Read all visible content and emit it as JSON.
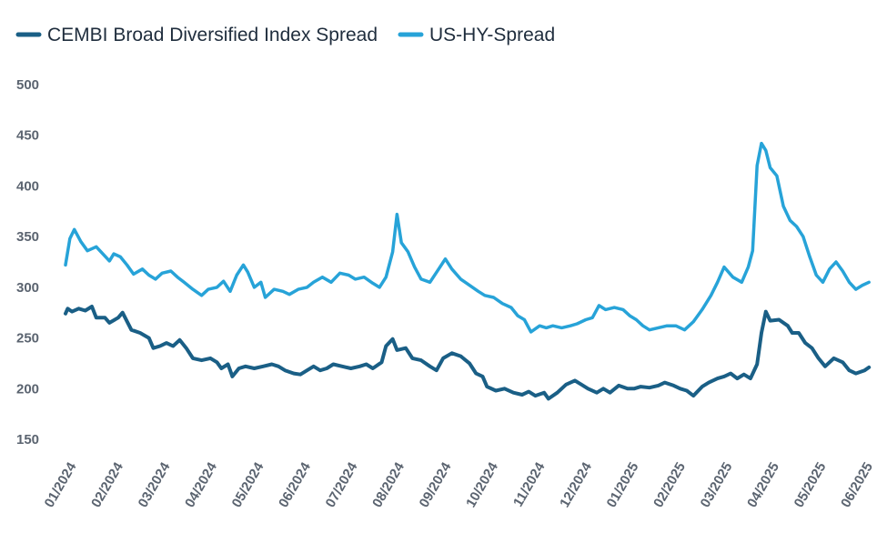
{
  "chart_data": {
    "type": "line",
    "title": "",
    "xlabel": "",
    "ylabel": "",
    "ylim": [
      150,
      500
    ],
    "yticks": [
      500,
      450,
      400,
      350,
      300,
      250,
      200,
      150
    ],
    "x_tick_labels": [
      "01/2024",
      "02/2024",
      "03/2024",
      "04/2024",
      "05/2024",
      "06/2024",
      "07/2024",
      "08/2024",
      "09/2024",
      "10/2024",
      "11/2024",
      "12/2024",
      "01/2025",
      "02/2025",
      "03/2025",
      "04/2025",
      "05/2025",
      "06/2025"
    ],
    "x_range_months": [
      0,
      17.6
    ],
    "grid": false,
    "legend_position": "top-left",
    "series": [
      {
        "name": "CEMBI Broad Diversified Index Spread",
        "color": "#1a5f86",
        "points": [
          [
            0,
            274
          ],
          [
            0.05,
            279
          ],
          [
            0.15,
            276
          ],
          [
            0.3,
            279
          ],
          [
            0.45,
            277
          ],
          [
            0.6,
            281
          ],
          [
            0.7,
            270
          ],
          [
            0.9,
            270
          ],
          [
            1.0,
            265
          ],
          [
            1.2,
            270
          ],
          [
            1.3,
            275
          ],
          [
            1.5,
            258
          ],
          [
            1.7,
            255
          ],
          [
            1.9,
            250
          ],
          [
            2.0,
            240
          ],
          [
            2.15,
            242
          ],
          [
            2.3,
            245
          ],
          [
            2.45,
            242
          ],
          [
            2.6,
            248
          ],
          [
            2.75,
            240
          ],
          [
            2.9,
            230
          ],
          [
            3.1,
            228
          ],
          [
            3.3,
            230
          ],
          [
            3.45,
            226
          ],
          [
            3.55,
            220
          ],
          [
            3.7,
            224
          ],
          [
            3.8,
            212
          ],
          [
            3.95,
            220
          ],
          [
            4.1,
            222
          ],
          [
            4.3,
            220
          ],
          [
            4.5,
            222
          ],
          [
            4.7,
            224
          ],
          [
            4.85,
            222
          ],
          [
            5.0,
            218
          ],
          [
            5.2,
            215
          ],
          [
            5.35,
            214
          ],
          [
            5.5,
            218
          ],
          [
            5.65,
            222
          ],
          [
            5.8,
            218
          ],
          [
            5.95,
            220
          ],
          [
            6.1,
            224
          ],
          [
            6.3,
            222
          ],
          [
            6.5,
            220
          ],
          [
            6.7,
            222
          ],
          [
            6.85,
            224
          ],
          [
            7.0,
            220
          ],
          [
            7.2,
            226
          ],
          [
            7.3,
            242
          ],
          [
            7.45,
            249
          ],
          [
            7.55,
            238
          ],
          [
            7.75,
            240
          ],
          [
            7.9,
            230
          ],
          [
            8.1,
            228
          ],
          [
            8.3,
            222
          ],
          [
            8.45,
            218
          ],
          [
            8.6,
            230
          ],
          [
            8.8,
            235
          ],
          [
            9.0,
            232
          ],
          [
            9.2,
            225
          ],
          [
            9.35,
            215
          ],
          [
            9.5,
            212
          ],
          [
            9.6,
            202
          ],
          [
            9.8,
            198
          ],
          [
            10.0,
            200
          ],
          [
            10.2,
            196
          ],
          [
            10.4,
            194
          ],
          [
            10.55,
            197
          ],
          [
            10.7,
            193
          ],
          [
            10.9,
            196
          ],
          [
            11.0,
            190
          ],
          [
            11.2,
            196
          ],
          [
            11.4,
            204
          ],
          [
            11.6,
            208
          ],
          [
            11.75,
            204
          ],
          [
            11.9,
            200
          ],
          [
            12.1,
            196
          ],
          [
            12.25,
            200
          ],
          [
            12.4,
            196
          ],
          [
            12.6,
            203
          ],
          [
            12.8,
            200
          ],
          [
            12.95,
            200
          ],
          [
            13.1,
            202
          ],
          [
            13.3,
            201
          ],
          [
            13.5,
            203
          ],
          [
            13.65,
            206
          ],
          [
            13.85,
            203
          ],
          [
            14.0,
            200
          ],
          [
            14.15,
            198
          ],
          [
            14.3,
            193
          ],
          [
            14.5,
            202
          ],
          [
            14.65,
            206
          ],
          [
            14.85,
            210
          ],
          [
            15.0,
            212
          ],
          [
            15.15,
            215
          ],
          [
            15.3,
            210
          ],
          [
            15.45,
            214
          ],
          [
            15.6,
            210
          ],
          [
            15.75,
            224
          ],
          [
            15.85,
            255
          ],
          [
            15.95,
            276
          ],
          [
            16.05,
            267
          ],
          [
            16.25,
            268
          ],
          [
            16.45,
            262
          ],
          [
            16.55,
            255
          ],
          [
            16.7,
            255
          ],
          [
            16.85,
            245
          ],
          [
            17.0,
            240
          ],
          [
            17.15,
            230
          ],
          [
            17.3,
            222
          ],
          [
            17.5,
            230
          ],
          [
            17.7,
            226
          ],
          [
            17.85,
            218
          ],
          [
            18.0,
            215
          ],
          [
            18.2,
            218
          ],
          [
            18.3,
            221
          ]
        ]
      },
      {
        "name": "US-HY-Spread",
        "color": "#27a3d8",
        "points": [
          [
            0,
            322
          ],
          [
            0.1,
            348
          ],
          [
            0.2,
            357
          ],
          [
            0.35,
            345
          ],
          [
            0.5,
            336
          ],
          [
            0.7,
            340
          ],
          [
            0.85,
            333
          ],
          [
            1.0,
            326
          ],
          [
            1.1,
            333
          ],
          [
            1.25,
            330
          ],
          [
            1.4,
            322
          ],
          [
            1.55,
            313
          ],
          [
            1.75,
            318
          ],
          [
            1.9,
            312
          ],
          [
            2.05,
            308
          ],
          [
            2.2,
            314
          ],
          [
            2.4,
            316
          ],
          [
            2.55,
            310
          ],
          [
            2.7,
            305
          ],
          [
            2.9,
            298
          ],
          [
            3.1,
            292
          ],
          [
            3.25,
            298
          ],
          [
            3.45,
            300
          ],
          [
            3.6,
            306
          ],
          [
            3.75,
            296
          ],
          [
            3.9,
            312
          ],
          [
            4.05,
            322
          ],
          [
            4.15,
            315
          ],
          [
            4.3,
            300
          ],
          [
            4.45,
            305
          ],
          [
            4.55,
            290
          ],
          [
            4.75,
            298
          ],
          [
            4.95,
            296
          ],
          [
            5.1,
            293
          ],
          [
            5.3,
            298
          ],
          [
            5.5,
            300
          ],
          [
            5.65,
            305
          ],
          [
            5.85,
            310
          ],
          [
            6.05,
            305
          ],
          [
            6.25,
            314
          ],
          [
            6.45,
            312
          ],
          [
            6.6,
            308
          ],
          [
            6.8,
            310
          ],
          [
            7.0,
            304
          ],
          [
            7.15,
            300
          ],
          [
            7.3,
            310
          ],
          [
            7.45,
            335
          ],
          [
            7.55,
            372
          ],
          [
            7.65,
            344
          ],
          [
            7.8,
            335
          ],
          [
            7.95,
            320
          ],
          [
            8.1,
            308
          ],
          [
            8.3,
            305
          ],
          [
            8.5,
            318
          ],
          [
            8.65,
            328
          ],
          [
            8.8,
            318
          ],
          [
            9.0,
            308
          ],
          [
            9.2,
            302
          ],
          [
            9.4,
            296
          ],
          [
            9.55,
            292
          ],
          [
            9.75,
            290
          ],
          [
            9.95,
            284
          ],
          [
            10.15,
            280
          ],
          [
            10.3,
            272
          ],
          [
            10.45,
            268
          ],
          [
            10.6,
            256
          ],
          [
            10.8,
            262
          ],
          [
            10.95,
            260
          ],
          [
            11.1,
            262
          ],
          [
            11.3,
            260
          ],
          [
            11.5,
            262
          ],
          [
            11.65,
            264
          ],
          [
            11.85,
            268
          ],
          [
            12.0,
            270
          ],
          [
            12.15,
            282
          ],
          [
            12.3,
            278
          ],
          [
            12.5,
            280
          ],
          [
            12.7,
            278
          ],
          [
            12.85,
            272
          ],
          [
            13.0,
            268
          ],
          [
            13.15,
            262
          ],
          [
            13.3,
            258
          ],
          [
            13.5,
            260
          ],
          [
            13.7,
            262
          ],
          [
            13.9,
            262
          ],
          [
            14.1,
            258
          ],
          [
            14.3,
            266
          ],
          [
            14.5,
            278
          ],
          [
            14.7,
            292
          ],
          [
            14.85,
            305
          ],
          [
            15.0,
            320
          ],
          [
            15.2,
            310
          ],
          [
            15.4,
            305
          ],
          [
            15.55,
            320
          ],
          [
            15.65,
            336
          ],
          [
            15.75,
            420
          ],
          [
            15.85,
            442
          ],
          [
            15.95,
            435
          ],
          [
            16.05,
            418
          ],
          [
            16.2,
            410
          ],
          [
            16.35,
            380
          ],
          [
            16.5,
            366
          ],
          [
            16.65,
            360
          ],
          [
            16.8,
            350
          ],
          [
            16.95,
            330
          ],
          [
            17.1,
            312
          ],
          [
            17.25,
            305
          ],
          [
            17.4,
            318
          ],
          [
            17.55,
            325
          ],
          [
            17.7,
            316
          ],
          [
            17.85,
            305
          ],
          [
            18.0,
            298
          ],
          [
            18.15,
            302
          ],
          [
            18.3,
            305
          ]
        ]
      }
    ]
  }
}
